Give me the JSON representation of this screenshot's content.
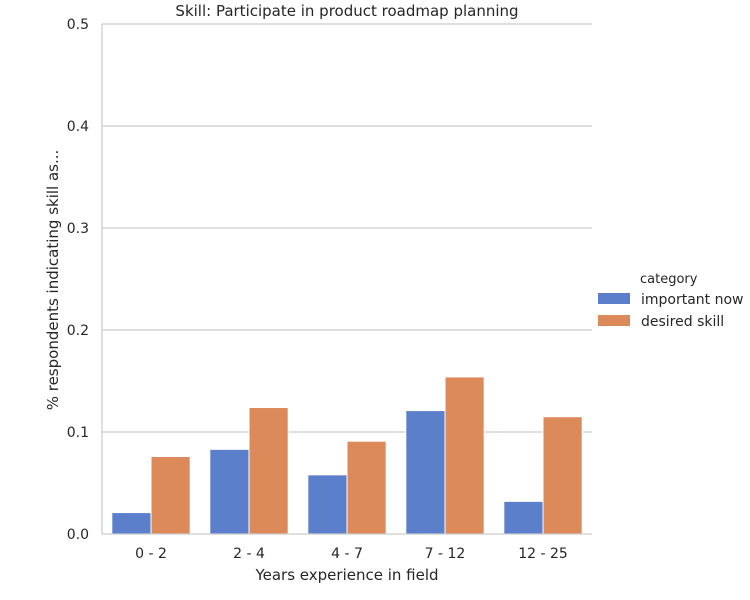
{
  "chart_data": {
    "type": "bar",
    "title": "Skill: Participate in product roadmap planning",
    "xlabel": "Years experience in field",
    "ylabel": "% respondents indicating skill as...",
    "categories": [
      "0 - 2",
      "2 - 4",
      "4 - 7",
      "7 - 12",
      "12 - 25"
    ],
    "series": [
      {
        "name": "important now",
        "color": "#5b7fcb",
        "values": [
          0.021,
          0.083,
          0.058,
          0.121,
          0.032
        ]
      },
      {
        "name": "desired skill",
        "color": "#dd8a5b",
        "values": [
          0.076,
          0.124,
          0.091,
          0.154,
          0.115
        ]
      }
    ],
    "ylim": [
      0,
      0.5
    ],
    "yticks": [
      "0.0",
      "0.1",
      "0.2",
      "0.3",
      "0.4",
      "0.5"
    ],
    "grid": "horizontal",
    "legend": {
      "title": "category",
      "placement": "right"
    }
  }
}
